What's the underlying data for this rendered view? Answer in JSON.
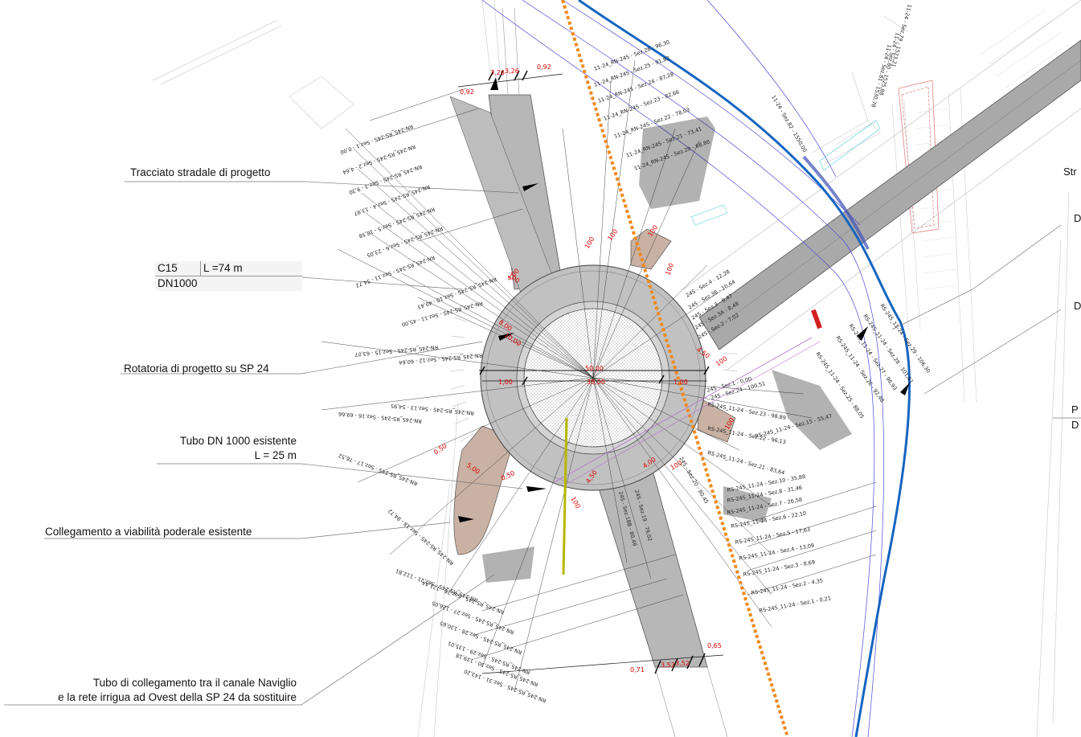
{
  "callouts": {
    "tracciato": "Tracciato stradale di progetto",
    "rotatoria": "Rotatoria di progetto su SP 24",
    "tubo_esistente_1": "Tubo DN 1000 esistente",
    "tubo_esistente_2": "L = 25 m",
    "collegamento": "Collegamento a viabilità poderale esistente",
    "tubo_sostituire_1": "Tubo di collegamento tra il canale Naviglio",
    "tubo_sostituire_2": "e la rete irrigua ad Ovest della SP 24 da sostituire"
  },
  "pipe_table": {
    "code": "C15",
    "length": "L =74 m",
    "diameter": "DN1000"
  },
  "right_edge_labels": [
    "Str",
    "D",
    "D",
    "P",
    "D"
  ],
  "dimensions": {
    "top_left": "0,92",
    "top_mid": "3,26",
    "top_mid2": "3,26",
    "top_right": "0,92",
    "bottom_left": "0,71",
    "bottom_mid": "3,52",
    "bottom_mid2": "3,52",
    "bottom_right": "0,65",
    "ring_w1": "1,00",
    "ring_w2": "1,00",
    "ring_d1": "8,00",
    "ring_d2": "10,00",
    "ring_d3": "4,00",
    "ring_d4": "5,00",
    "ring_d5": "0,50",
    "ring_d6": "0,50",
    "ring_d7": "4,50",
    "ring_d8": "4,50",
    "ring_d9": "4,00",
    "ring_d10": "100",
    "ring_d11": "100",
    "ring_d12": "100",
    "ring_d13": "100",
    "ring_d14": "100",
    "ring_d15": "100",
    "ring_d16": "100",
    "ring_d17": "100",
    "ring_d18": "100",
    "center_1": "50,00",
    "center_2": "38,00"
  },
  "sections_west": [
    "RN-24S_RS-24S - Sez.1 - 0,00",
    "RN-24S_RS-24S - Sez.2 - 4,64",
    "RN-24S_RS-24S - Sez.3 - 9,30",
    "RN-24S_RS-24S - Sez.4 - 13,97",
    "RN-24S_RS-24S - Sez.5 - 18,58",
    "RN-24S_RS-24S - Sez.6 - 23,05",
    "RN-24S_RS-24S - Sez.11 - 54,72",
    "RN-24S_RS-24S - Sez.10 - 40,43",
    "RN-24S_RS-24S - Sez.11 - 45,00",
    "RN-24S_RS-24S - Sez.15 - 63,07",
    "RN-24S_RS-24S - Sez.12 - 60,64",
    "RN-24S_RS-24S - Sez.16 - 69,66",
    "RN-24S_RS-24S - Sez.13 - 54,95",
    "RN-24S_RS-24S - Sez.17 - 76,52",
    "RN-24S_RS-24S - Sez.18 - 84,72",
    "RN-24S_RS-24S - Sez.21 - 112,81",
    "RN-24S_RS-24S - Sez.26 - 121,44",
    "RN-24S_RS-24S - Sez.27 - 126,05",
    "RN-24S_RS-24S - Sez.28 - 130,65",
    "RN-24S_RS-24S - Sez.29 - 135,01",
    "RN-24S_RS-24S - Sez.30 - 139,18",
    "RN-24S_RS-24S - Sez.31 - 143,20"
  ],
  "sections_north": [
    "11-24_RN-24S - Sez.26 - 96,30",
    "11-24_RN-24S - Sez.25 - 91,82",
    "11-24_RN-24S - Sez.24 - 87,28",
    "11-24_RN-24S - Sez.23 - 82,66",
    "11-24_RN-24S - Sez.22 - 78,03",
    "11-24_RN-24S - Sez.21 - 73,41",
    "11-24_RN-24S - Sez.20 - 68,80"
  ],
  "sections_east": [
    "RS-24S_11-24 - Sez.29 - 106,30",
    "RS-24S_11-24 - Sez.28 - 101,61",
    "RS-24S_11-24 - Sez.27 - 96,93",
    "RS-24S_11-24 - Sez.26 - 92,48",
    "RS-24S_11-24 - Sez.25 - 88,05",
    "RS-24S_11-24 - Sez.23 - 98,89",
    "RS-24S_11-24 - Sez.22 - 96,13",
    "RS-24S_11-24 - Sez.21 - 83,64",
    "RS-24S_11-24 - Sez.15 - 55,47",
    "RS-24S_11-24 - Sez.10 - 35,88",
    "RS-24S_11-24 - Sez.8 - 31,46",
    "RS-24S_11-24 - Sez.7 - 26,58",
    "RS-24S_11-24 - Sez.6 - 22,10",
    "RS-24S_11-24 - Sez.5 - 17,63",
    "RS-24S_11-24 - Sez.4 - 13,09",
    "RS-24S_11-24 - Sez.3 - 8,69",
    "RS-24S_11-24 - Sez.2 - 4,35",
    "RS-24S_11-24 - Sez.1 - 0,21"
  ],
  "sections_ring": [
    "24S - Sez.4 - 12,28",
    "24S - Sez.3B - 10,64",
    "24S - Sez.3 - 9,47",
    "24S - Sez.3A - 8,48",
    "24S - Sez.2 - 7,02",
    "24S - Sez.1 - 0,00",
    "24S - Sez.24 - 100,51",
    "24S - Sez.20 - 80,45",
    "24S - Sez.19 - 79,02",
    "24S - Sez.18B - 80,46"
  ],
  "sections_far": [
    "11-24 - Sez.79 - 1523,21",
    "11-24 - Sez.80 - 1525,88",
    "11-24 - Sez.81 - 1530,78",
    "11-24 - Sez.82 - 1550,00"
  ],
  "colors": {
    "road_fill": "#b7b7b7",
    "island_fill": "#ffffff",
    "access_fill": "#c9b1a3",
    "canal_blue": "#1565c0",
    "axis_orange": "#f08a1c",
    "pipe_yellow": "#b5b800",
    "dim_red": "#dd0000"
  }
}
